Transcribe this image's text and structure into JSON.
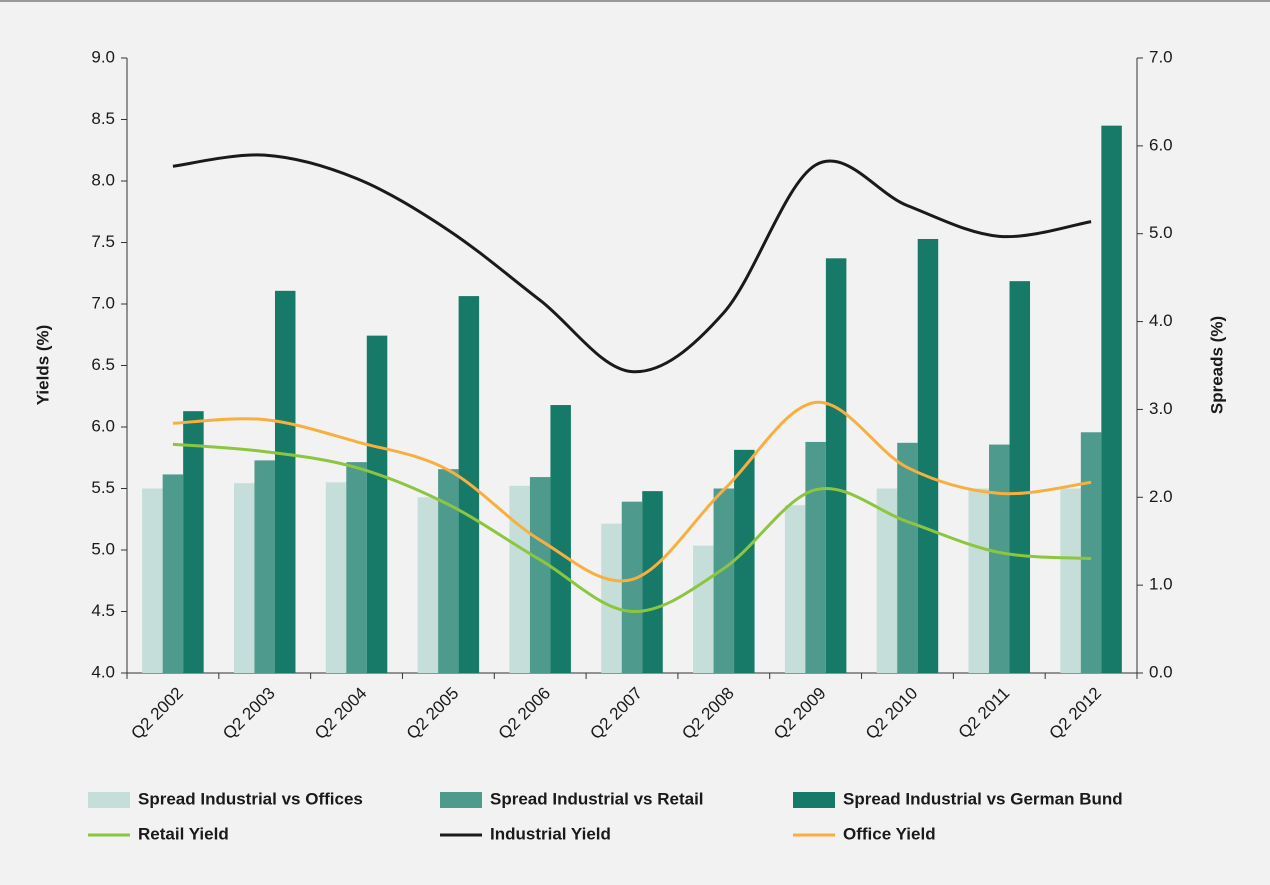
{
  "chart_data": {
    "type": "bar",
    "categories": [
      "Q2 2002",
      "Q2 2003",
      "Q2 2004",
      "Q2 2005",
      "Q2 2006",
      "Q2 2007",
      "Q2 2008",
      "Q2 2009",
      "Q2 2010",
      "Q2 2011",
      "Q2 2012"
    ],
    "ylabel": "Yields (%)",
    "y2label": "Spreads (%)",
    "ylim": [
      4,
      9
    ],
    "yticks": [
      {
        "value": 4,
        "label": "4.0"
      },
      {
        "value": 4.5,
        "label": "4.5"
      },
      {
        "value": 5,
        "label": "5.0"
      },
      {
        "value": 5.5,
        "label": "5.5"
      },
      {
        "value": 6,
        "label": "6.0"
      },
      {
        "value": 6.5,
        "label": "6.5"
      },
      {
        "value": 7,
        "label": "7.0"
      },
      {
        "value": 7.5,
        "label": "7.5"
      },
      {
        "value": 8,
        "label": "8.0"
      },
      {
        "value": 8.5,
        "label": "8.5"
      },
      {
        "value": 9,
        "label": "9.0"
      }
    ],
    "y2lim": [
      0,
      7
    ],
    "y2ticks": [
      {
        "value": 0,
        "label": "0.0"
      },
      {
        "value": 1,
        "label": "1.0"
      },
      {
        "value": 2,
        "label": "2.0"
      },
      {
        "value": 3,
        "label": "3.0"
      },
      {
        "value": 4,
        "label": "4.0"
      },
      {
        "value": 5,
        "label": "5.0"
      },
      {
        "value": 6,
        "label": "6.0"
      },
      {
        "value": 7,
        "label": "7.0"
      }
    ],
    "series": [
      {
        "name": "Spread Industrial vs Offices",
        "type": "bar",
        "axis": "y2",
        "color": "#c5ded9",
        "values": [
          2.1,
          2.16,
          2.17,
          2.0,
          2.13,
          1.7,
          1.45,
          1.91,
          2.1,
          2.1,
          2.1
        ]
      },
      {
        "name": "Spread Industrial vs Retail",
        "type": "bar",
        "axis": "y2",
        "color": "#4e9a8c",
        "values": [
          2.26,
          2.42,
          2.4,
          2.32,
          2.23,
          1.95,
          2.1,
          2.63,
          2.62,
          2.6,
          2.74
        ]
      },
      {
        "name": "Spread Industrial vs German Bund",
        "type": "bar",
        "axis": "y2",
        "color": "#177a68",
        "values": [
          2.98,
          4.35,
          3.84,
          4.29,
          3.05,
          2.07,
          2.54,
          4.72,
          4.94,
          4.46,
          6.23
        ]
      },
      {
        "name": "Retail Yield",
        "type": "line",
        "color": "#8cc63f",
        "values": [
          5.86,
          5.8,
          5.67,
          5.37,
          4.92,
          4.5,
          4.85,
          5.49,
          5.23,
          4.98,
          4.93
        ]
      },
      {
        "name": "Industrial Yield",
        "type": "line",
        "color": "#1a1a1a",
        "values": [
          8.12,
          8.21,
          8.02,
          7.6,
          7.03,
          6.45,
          6.93,
          8.13,
          7.8,
          7.55,
          7.67
        ]
      },
      {
        "name": "Office Yield",
        "type": "line",
        "color": "#f7b040",
        "values": [
          6.03,
          6.06,
          5.88,
          5.65,
          5.08,
          4.76,
          5.49,
          6.2,
          5.67,
          5.46,
          5.55
        ]
      }
    ]
  }
}
